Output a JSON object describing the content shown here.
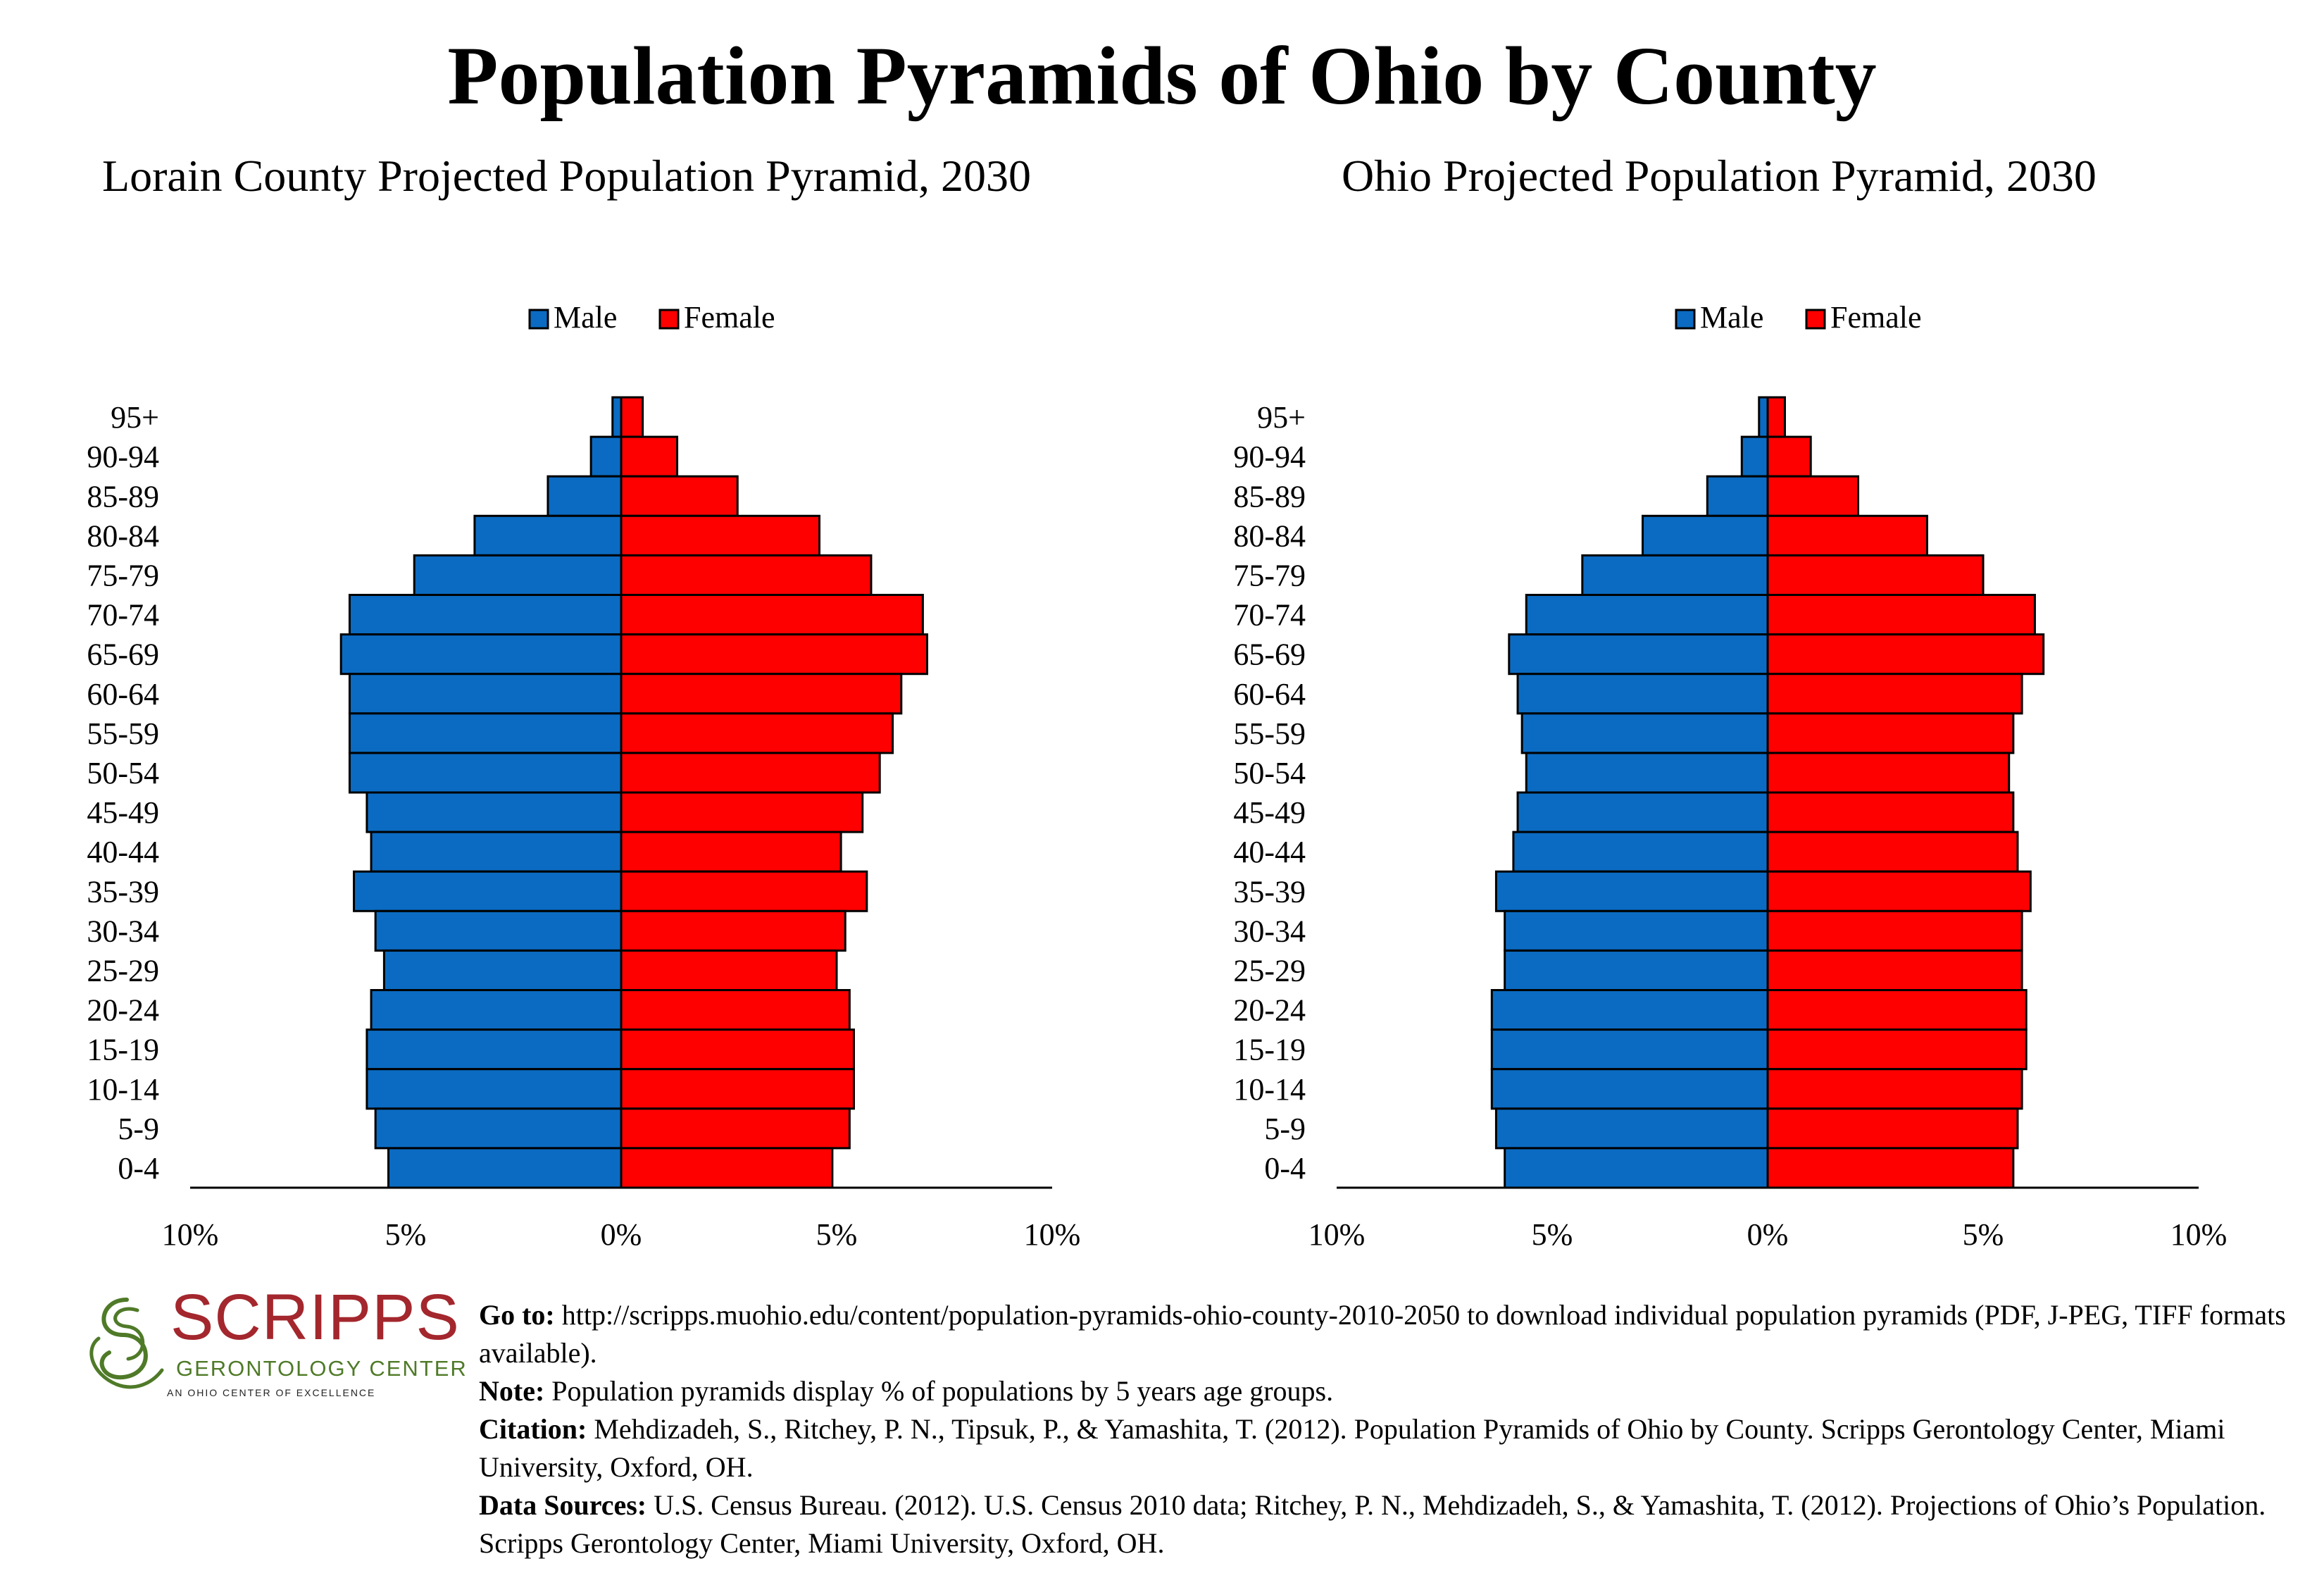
{
  "title": "Population Pyramids of Ohio by County",
  "legend": {
    "male_label": "Male",
    "female_label": "Female",
    "male_color": "#0b6bc2",
    "female_color": "#ff0000"
  },
  "colors": {
    "male": "#0b6bc2",
    "female": "#ff0000",
    "logo_red": "#a3272d",
    "logo_green": "#4f7a28"
  },
  "chart_data": [
    {
      "type": "bar",
      "orientation": "horizontal-pyramid",
      "title": "Lorain County Projected Population Pyramid, 2030",
      "categories": [
        "95+",
        "90-94",
        "85-89",
        "80-84",
        "75-79",
        "70-74",
        "65-69",
        "60-64",
        "55-59",
        "50-54",
        "45-49",
        "40-44",
        "35-39",
        "30-34",
        "25-29",
        "20-24",
        "15-19",
        "10-14",
        "5-9",
        "0-4"
      ],
      "series": [
        {
          "name": "Male",
          "values": [
            0.2,
            0.7,
            1.7,
            3.4,
            4.8,
            6.3,
            6.5,
            6.3,
            6.3,
            6.3,
            5.9,
            5.8,
            6.2,
            5.7,
            5.5,
            5.8,
            5.9,
            5.9,
            5.7,
            5.4
          ]
        },
        {
          "name": "Female",
          "values": [
            0.5,
            1.3,
            2.7,
            4.6,
            5.8,
            7.0,
            7.1,
            6.5,
            6.3,
            6.0,
            5.6,
            5.1,
            5.7,
            5.2,
            5.0,
            5.3,
            5.4,
            5.4,
            5.3,
            4.9
          ]
        }
      ],
      "xlim": [
        -10,
        10
      ],
      "xticks": [
        "10%",
        "5%",
        "0%",
        "5%",
        "10%"
      ],
      "legend_position": "top-center",
      "grid": false
    },
    {
      "type": "bar",
      "orientation": "horizontal-pyramid",
      "title": "Ohio Projected Population Pyramid, 2030",
      "categories": [
        "95+",
        "90-94",
        "85-89",
        "80-84",
        "75-79",
        "70-74",
        "65-69",
        "60-64",
        "55-59",
        "50-54",
        "45-49",
        "40-44",
        "35-39",
        "30-34",
        "25-29",
        "20-24",
        "15-19",
        "10-14",
        "5-9",
        "0-4"
      ],
      "series": [
        {
          "name": "Male",
          "values": [
            0.2,
            0.6,
            1.4,
            2.9,
            4.3,
            5.6,
            6.0,
            5.8,
            5.7,
            5.6,
            5.8,
            5.9,
            6.3,
            6.1,
            6.1,
            6.4,
            6.4,
            6.4,
            6.3,
            6.1
          ]
        },
        {
          "name": "Female",
          "values": [
            0.4,
            1.0,
            2.1,
            3.7,
            5.0,
            6.2,
            6.4,
            5.9,
            5.7,
            5.6,
            5.7,
            5.8,
            6.1,
            5.9,
            5.9,
            6.0,
            6.0,
            5.9,
            5.8,
            5.7
          ]
        }
      ],
      "xlim": [
        -10,
        10
      ],
      "xticks": [
        "10%",
        "5%",
        "0%",
        "5%",
        "10%"
      ],
      "legend_position": "top-center",
      "grid": false
    }
  ],
  "logo": {
    "name": "SCRIPPS",
    "subtitle": "GERONTOLOGY CENTER",
    "tagline": "AN OHIO CENTER OF EXCELLENCE"
  },
  "notes": {
    "goto_label": "Go to:",
    "goto_text": "http://scripps.muohio.edu/content/population-pyramids-ohio-county-2010-2050 to download individual population pyramids (PDF, J-PEG, TIFF formats available).",
    "note_label": "Note:",
    "note_text": "Population pyramids display % of populations by 5 years age groups.",
    "citation_label": "Citation:",
    "citation_text": "Mehdizadeh, S., Ritchey, P. N., Tipsuk, P., & Yamashita, T. (2012). Population Pyramids of Ohio by County. Scripps Gerontology Center, Miami University, Oxford, OH.",
    "sources_label": "Data Sources:",
    "sources_text": "U.S. Census Bureau. (2012). U.S. Census 2010 data; Ritchey, P. N., Mehdizadeh, S., & Yamashita, T. (2012). Projections of Ohio’s Population. Scripps Gerontology Center, Miami University, Oxford, OH."
  }
}
